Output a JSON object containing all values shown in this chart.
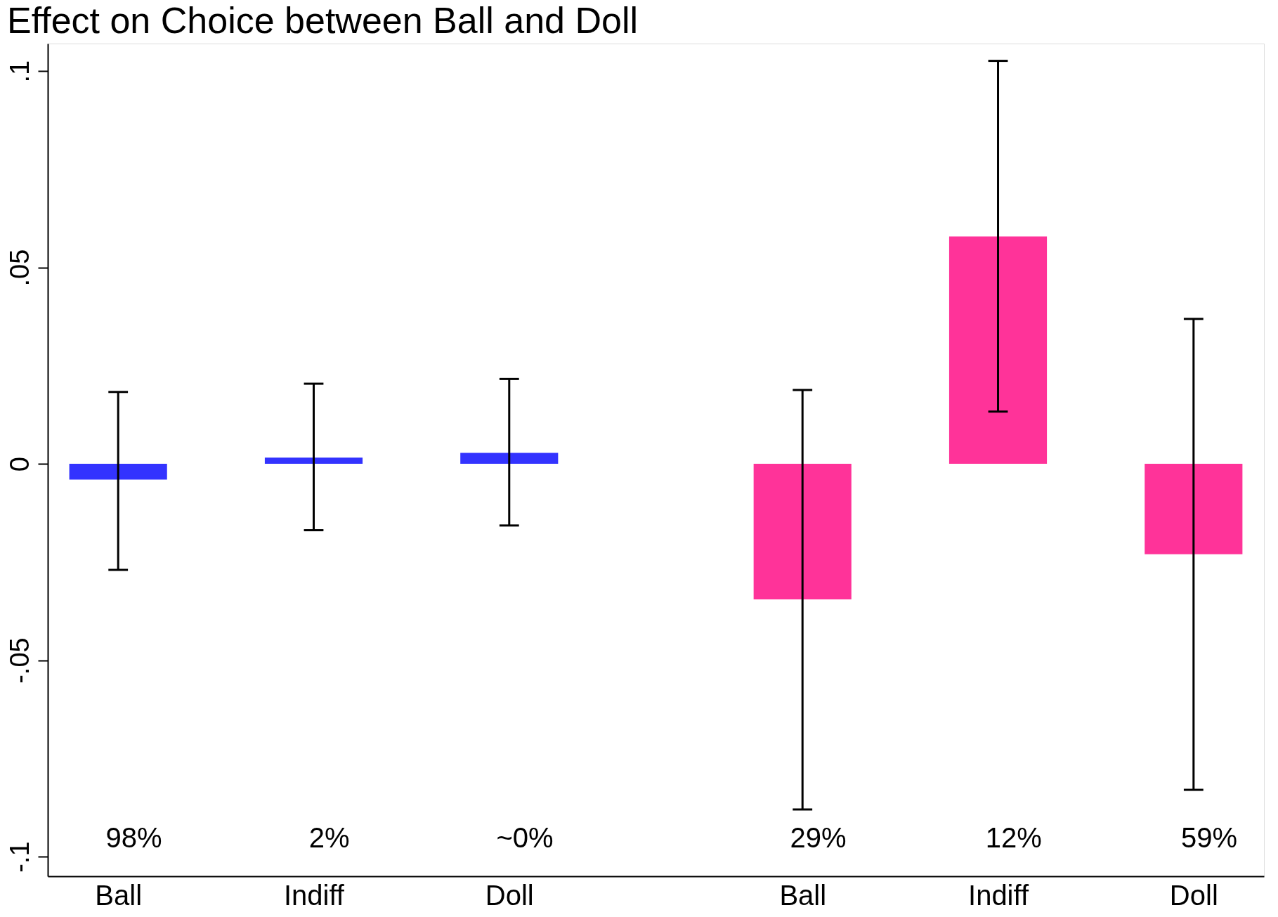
{
  "chart_data": {
    "type": "bar",
    "title": "Effect on Choice between Ball and Doll",
    "categories": [
      "Ball",
      "Indiff",
      "Doll",
      "Ball",
      "Indiff",
      "Doll"
    ],
    "values": [
      -0.004,
      0.0016,
      0.0028,
      -0.0345,
      0.0579,
      -0.023
    ],
    "colors": [
      "#3333ff",
      "#3333ff",
      "#3333ff",
      "#ff3399",
      "#ff3399",
      "#ff3399"
    ],
    "errors": [
      [
        -0.027,
        0.0183
      ],
      [
        -0.0169,
        0.0204
      ],
      [
        -0.0157,
        0.0216
      ],
      [
        -0.088,
        0.0188
      ],
      [
        0.0133,
        0.1026
      ],
      [
        -0.083,
        0.0369
      ]
    ],
    "annotations": [
      "98%",
      "2%",
      "~0%",
      "29%",
      "12%",
      "59%"
    ],
    "ylim": [
      -0.105,
      0.107
    ],
    "yticks": [
      {
        "value": -0.1,
        "label": "-.1"
      },
      {
        "value": -0.05,
        "label": "-.05"
      },
      {
        "value": 0,
        "label": "0"
      },
      {
        "value": 0.05,
        "label": ".05"
      },
      {
        "value": 0.1,
        "label": ".1"
      }
    ],
    "grid": false
  }
}
